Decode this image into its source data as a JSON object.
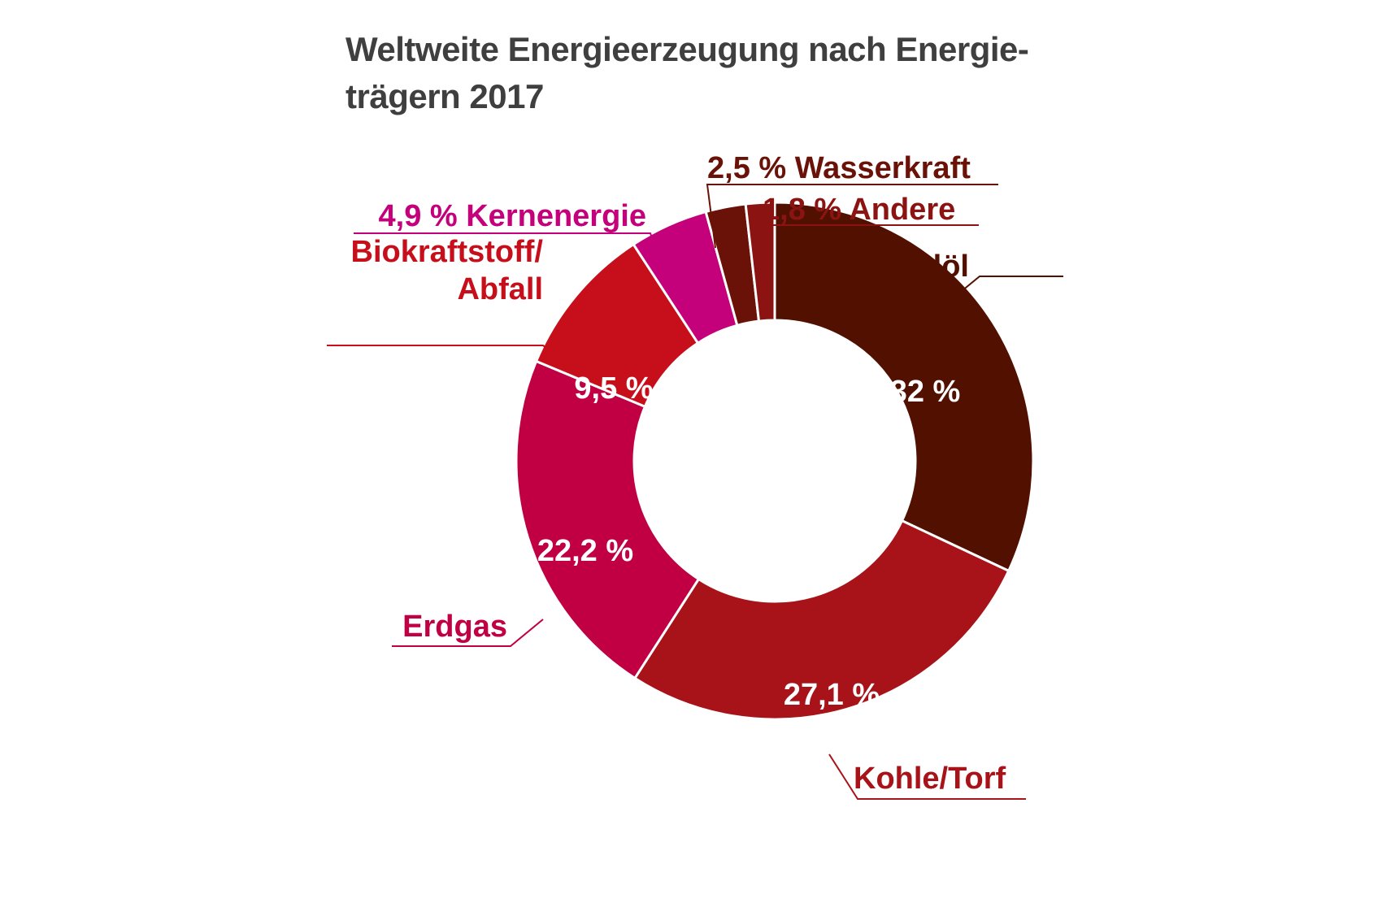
{
  "chart_data": {
    "type": "pie",
    "title_line1": "Weltweite Energieerzeugung nach Energie-",
    "title_line2": "trägern 2017",
    "slices": [
      {
        "key": "erdoel",
        "label": [
          "Erdöl"
        ],
        "value": 32,
        "value_text": "32 %",
        "color": "#521100"
      },
      {
        "key": "kohle",
        "label": [
          "Kohle/Torf"
        ],
        "value": 27.1,
        "value_text": "27,1 %",
        "color": "#a71319"
      },
      {
        "key": "erdgas",
        "label": [
          "Erdgas"
        ],
        "value": 22.2,
        "value_text": "22,2 %",
        "color": "#c10044"
      },
      {
        "key": "biokraftstoff",
        "label": [
          "Biokraftstoff/",
          "Abfall"
        ],
        "value": 9.5,
        "value_text": "9,5 %",
        "color": "#c70f1c"
      },
      {
        "key": "kernenergie",
        "label": [
          "4,9 % Kernenergie"
        ],
        "value": 4.9,
        "value_text": "",
        "color": "#c4007a"
      },
      {
        "key": "wasserkraft",
        "label": [
          "2,5 % Wasserkraft"
        ],
        "value": 2.5,
        "value_text": "",
        "color": "#6b1208"
      },
      {
        "key": "andere",
        "label": [
          "1,8 % Andere"
        ],
        "value": 1.8,
        "value_text": "",
        "color": "#8b1412"
      }
    ],
    "start_at": "top",
    "direction": "clockwise",
    "donut": true
  }
}
